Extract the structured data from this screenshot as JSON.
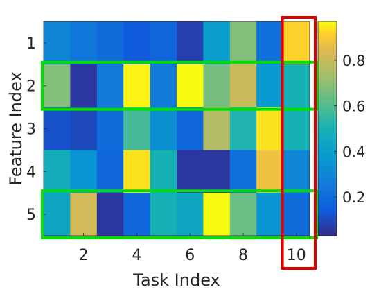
{
  "chart_data": {
    "type": "heatmap",
    "title": "",
    "xlabel": "Task Index",
    "ylabel": "Feature Index",
    "x_categories": [
      1,
      2,
      3,
      4,
      5,
      6,
      7,
      8,
      9,
      10
    ],
    "x_tick_labels": [
      "2",
      "4",
      "6",
      "8",
      "10"
    ],
    "y_categories": [
      1,
      2,
      3,
      4,
      5
    ],
    "y_tick_labels": [
      "1",
      "2",
      "3",
      "4",
      "5"
    ],
    "values": [
      [
        0.3,
        0.24,
        0.2,
        0.14,
        0.18,
        0.08,
        0.4,
        0.68,
        0.22,
        0.92
      ],
      [
        0.68,
        0.06,
        0.26,
        0.96,
        0.26,
        0.97,
        0.66,
        0.8,
        0.38,
        0.5
      ],
      [
        0.12,
        0.1,
        0.2,
        0.58,
        0.34,
        0.18,
        0.76,
        0.52,
        0.94,
        0.5
      ],
      [
        0.48,
        0.36,
        0.18,
        0.94,
        0.5,
        0.06,
        0.06,
        0.22,
        0.88,
        0.3
      ],
      [
        0.44,
        0.82,
        0.06,
        0.18,
        0.5,
        0.44,
        0.98,
        0.64,
        0.36,
        0.2
      ]
    ],
    "colorbar": {
      "range": [
        0.03,
        0.97
      ],
      "ticks": [
        0.2,
        0.4,
        0.6,
        0.8
      ],
      "tick_labels": [
        "0.2",
        "0.4",
        "0.6",
        "0.8"
      ]
    },
    "colormap": "parula",
    "highlights": [
      {
        "kind": "row",
        "index": 2,
        "color": "#00e000"
      },
      {
        "kind": "row",
        "index": 5,
        "color": "#00e000"
      },
      {
        "kind": "column",
        "index": 10,
        "color": "#e00000"
      }
    ]
  }
}
